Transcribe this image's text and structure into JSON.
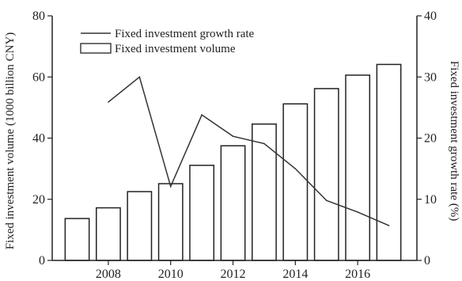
{
  "chart_data": {
    "type": "bar",
    "x": [
      2007,
      2008,
      2009,
      2010,
      2011,
      2012,
      2013,
      2014,
      2015,
      2016,
      2017
    ],
    "series": [
      {
        "name": "Fixed investment volume",
        "kind": "bar",
        "axis": "left",
        "values": [
          13.7,
          17.2,
          22.5,
          25.1,
          31.1,
          37.5,
          44.6,
          51.2,
          56.2,
          60.6,
          64.1
        ]
      },
      {
        "name": "Fixed investment growth rate",
        "kind": "line",
        "axis": "right",
        "x": [
          2008,
          2009,
          2010,
          2011,
          2012,
          2013,
          2014,
          2015,
          2016,
          2017
        ],
        "values": [
          25.9,
          30.0,
          12.1,
          23.8,
          20.3,
          19.1,
          15.0,
          9.8,
          7.9,
          5.7
        ]
      }
    ],
    "xticks": [
      "2008",
      "2010",
      "2012",
      "2014",
      "2016"
    ],
    "xtick_values": [
      2008,
      2010,
      2012,
      2014,
      2016
    ],
    "xlim": [
      2006.2,
      2017.9
    ],
    "ylabel": "Fixed investment volume (1000 billion CNY)",
    "ylabel_right": "Fixed investment growth rate (%)",
    "ylim": [
      0,
      80
    ],
    "ylim_right": [
      0,
      40
    ],
    "yticks": [
      "0",
      "20",
      "40",
      "60",
      "80"
    ],
    "yticks_right": [
      "0",
      "10",
      "20",
      "30",
      "40"
    ],
    "legend_position": "top-left",
    "grid": false,
    "colors": {
      "bar_fill": "#ffffff",
      "bar_stroke": "#222222",
      "line": "#333333",
      "axis": "#222222"
    }
  }
}
